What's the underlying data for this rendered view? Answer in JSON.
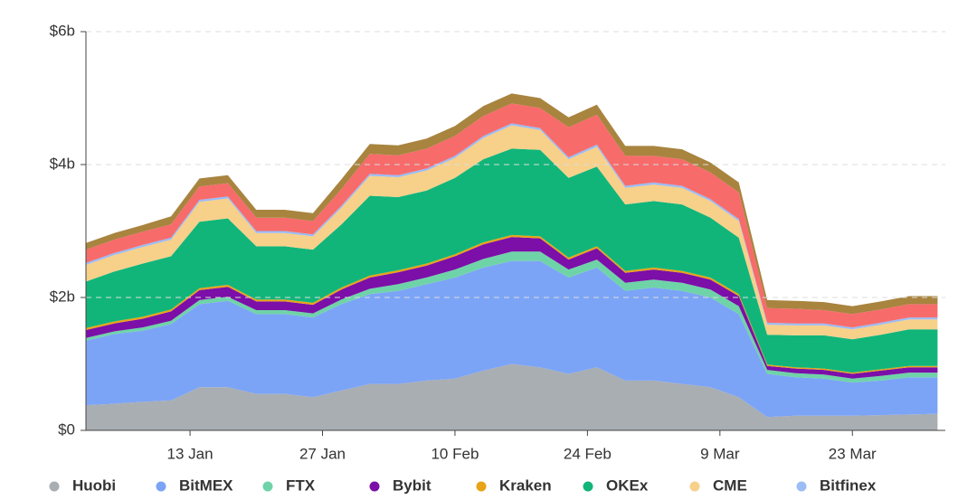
{
  "chart_data": {
    "type": "stacked_area",
    "x": [
      "2 Jan",
      "5 Jan",
      "8 Jan",
      "11 Jan",
      "14 Jan",
      "17 Jan",
      "20 Jan",
      "23 Jan",
      "26 Jan",
      "29 Jan",
      "1 Feb",
      "4 Feb",
      "7 Feb",
      "10 Feb",
      "13 Feb",
      "16 Feb",
      "19 Feb",
      "22 Feb",
      "25 Feb",
      "28 Feb",
      "2 Mar",
      "5 Mar",
      "8 Mar",
      "11 Mar",
      "14 Mar",
      "17 Mar",
      "20 Mar",
      "23 Mar",
      "26 Mar",
      "29 Mar",
      "1 Apr"
    ],
    "xticks": [
      "13 Jan",
      "27 Jan",
      "10 Feb",
      "24 Feb",
      "9 Mar",
      "23 Mar"
    ],
    "ylim": [
      0,
      6
    ],
    "yticks": [
      {
        "value": 0,
        "label": "$0"
      },
      {
        "value": 2,
        "label": "$2b"
      },
      {
        "value": 4,
        "label": "$4b"
      },
      {
        "value": 6,
        "label": "$6b"
      }
    ],
    "grid": true,
    "series": [
      {
        "name": "Huobi",
        "color": "#a9aeb3",
        "values": [
          0.38,
          0.4,
          0.43,
          0.45,
          0.65,
          0.65,
          0.55,
          0.55,
          0.5,
          0.6,
          0.7,
          0.7,
          0.75,
          0.78,
          0.9,
          1.0,
          0.95,
          0.85,
          0.95,
          0.75,
          0.75,
          0.7,
          0.65,
          0.5,
          0.2,
          0.22,
          0.22,
          0.22,
          0.23,
          0.24,
          0.25
        ]
      },
      {
        "name": "BitMEX",
        "color": "#7ba4f6",
        "values": [
          0.97,
          1.05,
          1.07,
          1.15,
          1.25,
          1.3,
          1.2,
          1.2,
          1.2,
          1.3,
          1.35,
          1.4,
          1.45,
          1.52,
          1.55,
          1.55,
          1.6,
          1.45,
          1.5,
          1.35,
          1.4,
          1.4,
          1.35,
          1.25,
          0.65,
          0.58,
          0.56,
          0.5,
          0.52,
          0.56,
          0.55
        ]
      },
      {
        "name": "FTX",
        "color": "#6fd3a8",
        "values": [
          0.04,
          0.04,
          0.05,
          0.05,
          0.06,
          0.06,
          0.06,
          0.06,
          0.06,
          0.07,
          0.08,
          0.1,
          0.1,
          0.12,
          0.13,
          0.14,
          0.14,
          0.12,
          0.12,
          0.12,
          0.12,
          0.12,
          0.12,
          0.12,
          0.06,
          0.06,
          0.06,
          0.06,
          0.07,
          0.07,
          0.07
        ]
      },
      {
        "name": "Bybit",
        "color": "#7b0fa8",
        "values": [
          0.12,
          0.12,
          0.13,
          0.14,
          0.15,
          0.15,
          0.13,
          0.13,
          0.13,
          0.15,
          0.17,
          0.18,
          0.18,
          0.2,
          0.22,
          0.22,
          0.2,
          0.15,
          0.17,
          0.15,
          0.15,
          0.15,
          0.15,
          0.15,
          0.06,
          0.07,
          0.07,
          0.07,
          0.08,
          0.08,
          0.08
        ]
      },
      {
        "name": "Kraken",
        "color": "#e8a317",
        "values": [
          0.03,
          0.03,
          0.03,
          0.03,
          0.03,
          0.03,
          0.03,
          0.03,
          0.03,
          0.03,
          0.03,
          0.03,
          0.03,
          0.03,
          0.03,
          0.03,
          0.03,
          0.03,
          0.03,
          0.03,
          0.03,
          0.03,
          0.03,
          0.03,
          0.02,
          0.02,
          0.02,
          0.02,
          0.02,
          0.02,
          0.02
        ]
      },
      {
        "name": "OKEx",
        "color": "#11b57a",
        "values": [
          0.7,
          0.75,
          0.8,
          0.8,
          1.0,
          1.0,
          0.8,
          0.8,
          0.8,
          0.95,
          1.2,
          1.1,
          1.1,
          1.15,
          1.25,
          1.3,
          1.3,
          1.2,
          1.2,
          1.0,
          1.0,
          1.0,
          0.9,
          0.85,
          0.45,
          0.48,
          0.5,
          0.5,
          0.52,
          0.55,
          0.55
        ]
      },
      {
        "name": "CME",
        "color": "#f7d08a",
        "values": [
          0.25,
          0.25,
          0.25,
          0.25,
          0.3,
          0.3,
          0.2,
          0.2,
          0.2,
          0.25,
          0.3,
          0.3,
          0.3,
          0.3,
          0.32,
          0.35,
          0.3,
          0.28,
          0.3,
          0.25,
          0.25,
          0.25,
          0.25,
          0.25,
          0.15,
          0.15,
          0.15,
          0.15,
          0.15,
          0.15,
          0.15
        ]
      },
      {
        "name": "Bitfinex",
        "color": "#9bbcf5",
        "values": [
          0.03,
          0.03,
          0.03,
          0.03,
          0.03,
          0.03,
          0.03,
          0.03,
          0.03,
          0.03,
          0.03,
          0.03,
          0.03,
          0.03,
          0.03,
          0.03,
          0.03,
          0.03,
          0.03,
          0.03,
          0.03,
          0.03,
          0.03,
          0.03,
          0.03,
          0.03,
          0.03,
          0.03,
          0.03,
          0.03,
          0.03
        ]
      },
      {
        "color": "#f76b6b",
        "values": [
          0.2,
          0.2,
          0.2,
          0.2,
          0.2,
          0.2,
          0.2,
          0.2,
          0.2,
          0.25,
          0.3,
          0.3,
          0.3,
          0.3,
          0.3,
          0.3,
          0.3,
          0.45,
          0.45,
          0.45,
          0.4,
          0.4,
          0.4,
          0.4,
          0.22,
          0.22,
          0.2,
          0.2,
          0.2,
          0.2,
          0.2
        ]
      },
      {
        "color": "#a8843f",
        "values": [
          0.1,
          0.1,
          0.1,
          0.12,
          0.12,
          0.12,
          0.12,
          0.12,
          0.12,
          0.15,
          0.15,
          0.15,
          0.15,
          0.15,
          0.15,
          0.15,
          0.15,
          0.15,
          0.15,
          0.15,
          0.15,
          0.15,
          0.15,
          0.15,
          0.12,
          0.12,
          0.12,
          0.12,
          0.12,
          0.12,
          0.12
        ]
      }
    ]
  }
}
